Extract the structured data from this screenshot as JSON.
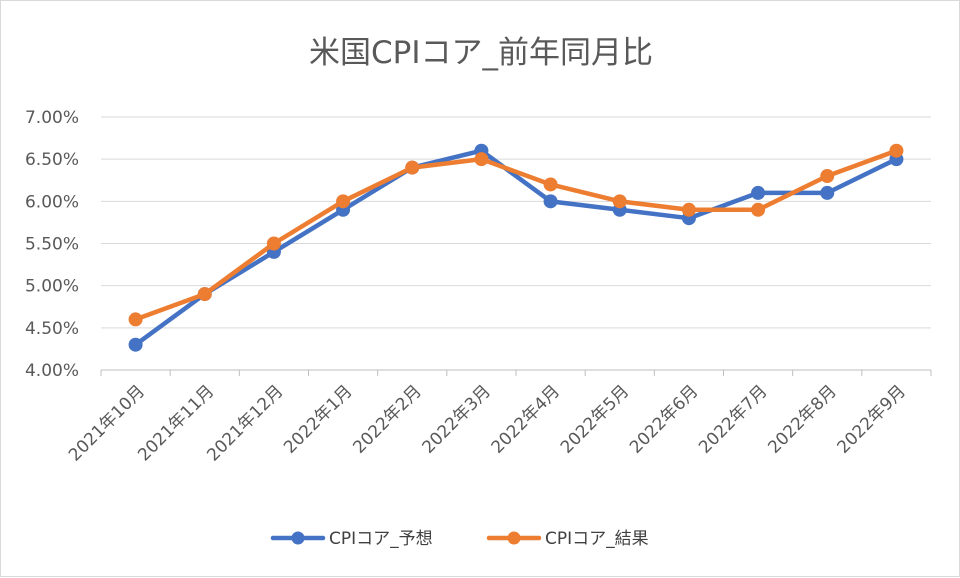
{
  "chart_data": {
    "type": "line",
    "title": "米国CPIコア_前年同月比",
    "categories": [
      "2021年10月",
      "2021年11月",
      "2021年12月",
      "2022年1月",
      "2022年2月",
      "2022年3月",
      "2022年4月",
      "2022年5月",
      "2022年6月",
      "2022年7月",
      "2022年8月",
      "2022年9月"
    ],
    "series": [
      {
        "name": "CPIコア_予想",
        "color": "#4472c4",
        "values": [
          4.3,
          4.9,
          5.4,
          5.9,
          6.4,
          6.6,
          6.0,
          5.9,
          5.8,
          6.1,
          6.1,
          6.5
        ]
      },
      {
        "name": "CPIコア_結果",
        "color": "#ed7d31",
        "values": [
          4.6,
          4.9,
          5.5,
          6.0,
          6.4,
          6.5,
          6.2,
          6.0,
          5.9,
          5.9,
          6.3,
          6.6
        ]
      }
    ],
    "ylim": [
      4.0,
      7.0
    ],
    "yticks": [
      "4.00%",
      "4.50%",
      "5.00%",
      "5.50%",
      "6.00%",
      "6.50%",
      "7.00%"
    ],
    "grid": true,
    "legend_position": "bottom"
  }
}
